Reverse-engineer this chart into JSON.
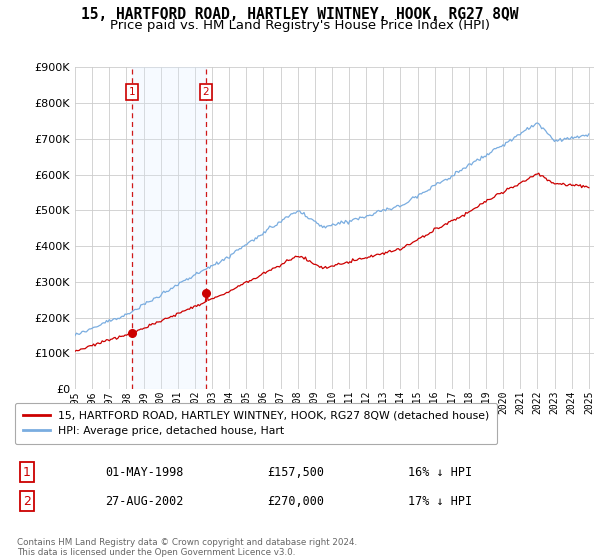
{
  "title": "15, HARTFORD ROAD, HARTLEY WINTNEY, HOOK, RG27 8QW",
  "subtitle": "Price paid vs. HM Land Registry's House Price Index (HPI)",
  "ylim": [
    0,
    900000
  ],
  "yticks": [
    0,
    100000,
    200000,
    300000,
    400000,
    500000,
    600000,
    700000,
    800000,
    900000
  ],
  "ytick_labels": [
    "£0",
    "£100K",
    "£200K",
    "£300K",
    "£400K",
    "£500K",
    "£600K",
    "£700K",
    "£800K",
    "£900K"
  ],
  "sale1_date_num": 1998.33,
  "sale1_price": 157500,
  "sale1_label": "1",
  "sale2_date_num": 2002.65,
  "sale2_price": 270000,
  "sale2_label": "2",
  "red_line_color": "#cc0000",
  "blue_line_color": "#7aade0",
  "shade_color": "#ddeeff",
  "marker_color": "#cc0000",
  "vline_color": "#cc0000",
  "grid_color": "#cccccc",
  "background_color": "#ffffff",
  "legend_label_red": "15, HARTFORD ROAD, HARTLEY WINTNEY, HOOK, RG27 8QW (detached house)",
  "legend_label_blue": "HPI: Average price, detached house, Hart",
  "table_row1": [
    "1",
    "01-MAY-1998",
    "£157,500",
    "16% ↓ HPI"
  ],
  "table_row2": [
    "2",
    "27-AUG-2002",
    "£270,000",
    "17% ↓ HPI"
  ],
  "footnote": "Contains HM Land Registry data © Crown copyright and database right 2024.\nThis data is licensed under the Open Government Licence v3.0.",
  "title_fontsize": 10.5,
  "subtitle_fontsize": 9.5
}
